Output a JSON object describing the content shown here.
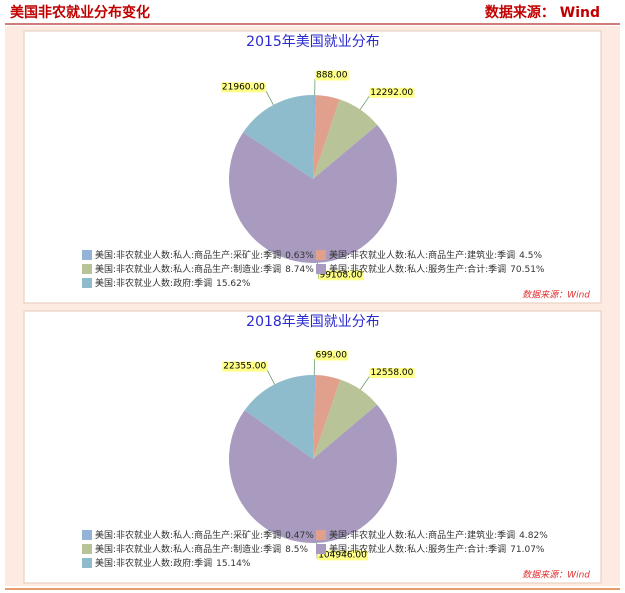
{
  "header": {
    "title": "美国非农就业分布变化",
    "source": "数据来源： Wind"
  },
  "chart_data": [
    {
      "type": "pie",
      "title": "2015年美国就业分布",
      "categories": [
        "美国:非农就业人数:私人:商品生产:采矿业:季调",
        "美国:非农就业人数:私人:商品生产:建筑业:季调",
        "美国:非农就业人数:私人:商品生产:制造业:季调",
        "美国:非农就业人数:私人:服务生产:合计:季调",
        "美国:非农就业人数:政府:季调"
      ],
      "values": [
        888,
        6325,
        12292,
        99108,
        21960
      ],
      "value_labels": [
        "888.00",
        null,
        "12292.00",
        "99108.00",
        "21960.00"
      ],
      "percent_labels": [
        "0.63%",
        "4.5%",
        "8.74%",
        "70.51%",
        "15.62%"
      ],
      "colors": [
        "#95b3d7",
        "#e0a08b",
        "#b8c497",
        "#a89bbf",
        "#8fbccc"
      ],
      "source": "数据来源：Wind"
    },
    {
      "type": "pie",
      "title": "2018年美国就业分布",
      "categories": [
        "美国:非农就业人数:私人:商品生产:采矿业:季调",
        "美国:非农就业人数:私人:商品生产:建筑业:季调",
        "美国:非农就业人数:私人:商品生产:制造业:季调",
        "美国:非农就业人数:私人:服务生产:合计:季调",
        "美国:非农就业人数:政府:季调"
      ],
      "values": [
        699,
        7118,
        12558,
        104946,
        22355
      ],
      "value_labels": [
        "699.00",
        null,
        "12558.00",
        "104946.00",
        "22355.00"
      ],
      "percent_labels": [
        "0.47%",
        "4.82%",
        "8.5%",
        "71.07%",
        "15.14%"
      ],
      "colors": [
        "#95b3d7",
        "#e0a08b",
        "#b8c497",
        "#a89bbf",
        "#8fbccc"
      ],
      "source": "数据来源：Wind"
    }
  ]
}
